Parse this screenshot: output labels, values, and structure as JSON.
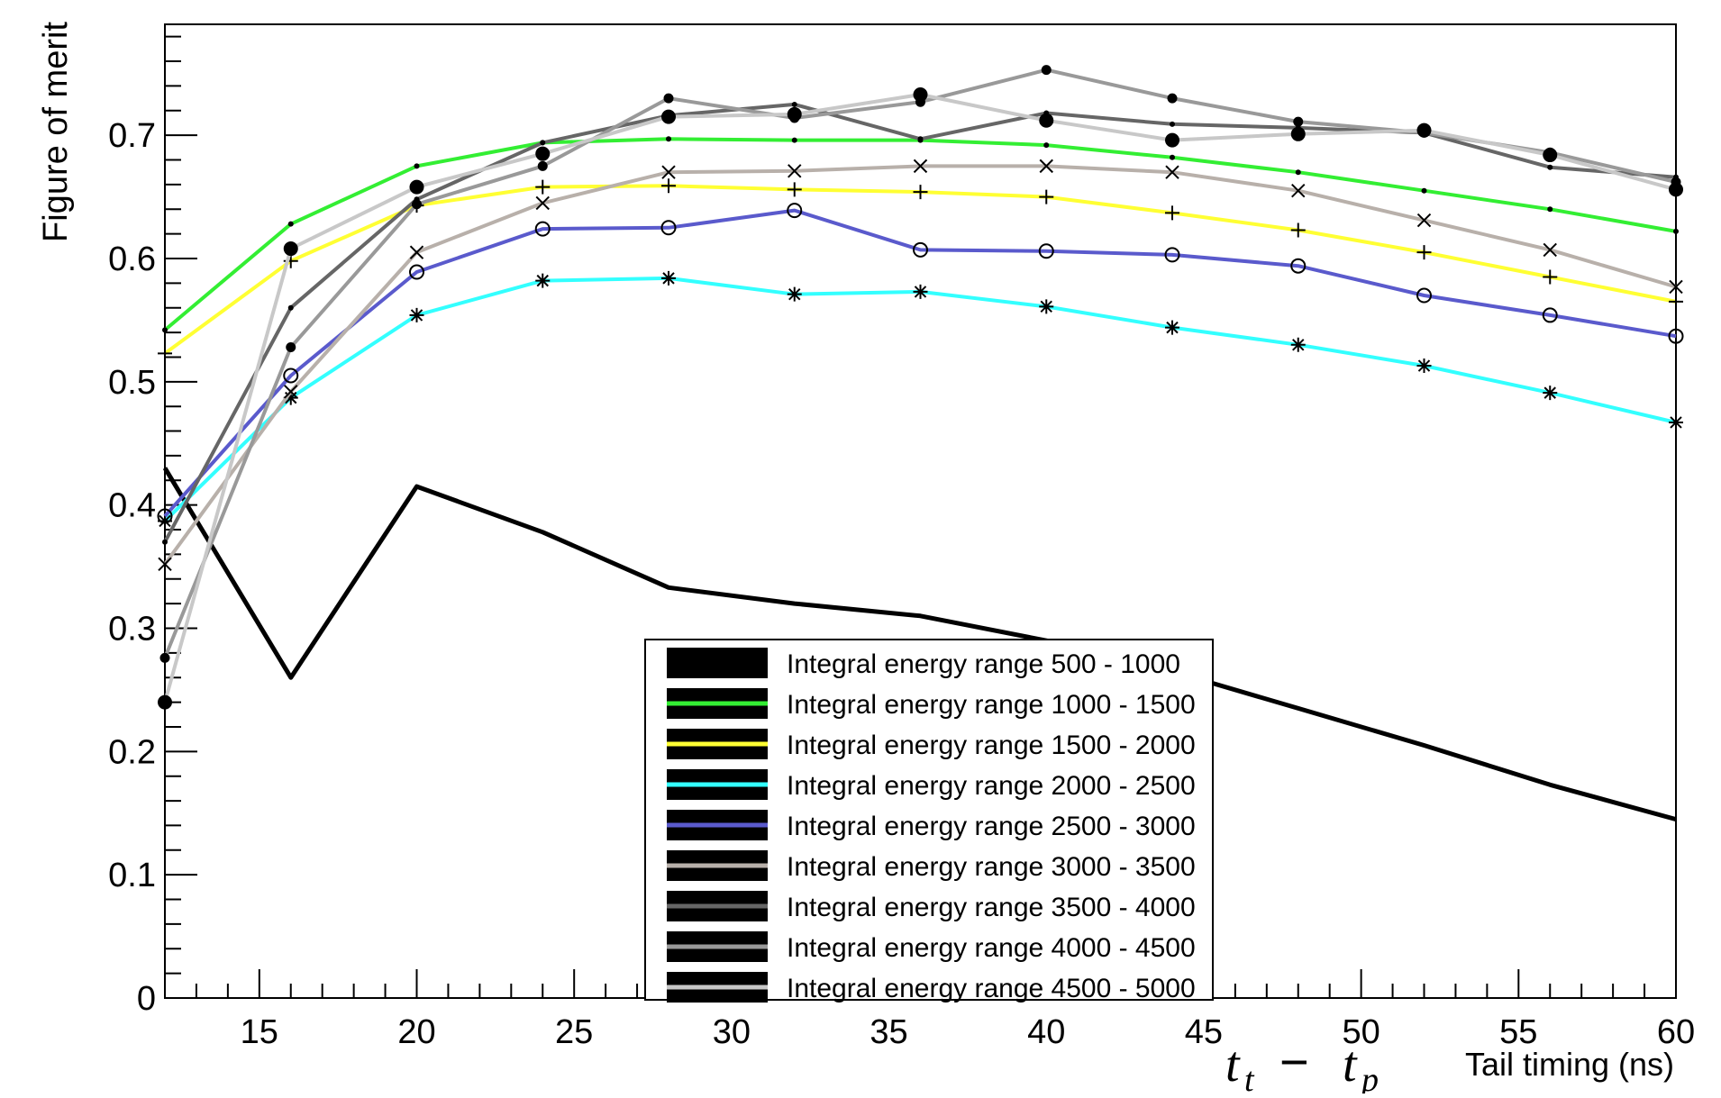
{
  "chart_data": {
    "type": "line",
    "ylabel": "Figure of merit",
    "xlabel_math": "t",
    "xlabel_sub_t": "t",
    "xlabel_sub_p": "p",
    "xlabel_minus": "−",
    "xlabel_text": "Tail timing (ns)",
    "xlim": [
      12,
      60
    ],
    "ylim": [
      0,
      0.79
    ],
    "xticks": [
      15,
      20,
      25,
      30,
      35,
      40,
      45,
      50,
      55,
      60
    ],
    "xtick_labels": [
      "15",
      "20",
      "25",
      "30",
      "35",
      "40",
      "45",
      "50",
      "55",
      "60"
    ],
    "yticks": [
      0,
      0.1,
      0.2,
      0.3,
      0.4,
      0.5,
      0.6,
      0.7
    ],
    "ytick_labels": [
      "0",
      "0.1",
      "0.2",
      "0.3",
      "0.4",
      "0.5",
      "0.6",
      "0.7"
    ],
    "grid": false,
    "legend_position": "bottom-center",
    "x": [
      12,
      16,
      20,
      24,
      28,
      32,
      36,
      40,
      44,
      48,
      52,
      56,
      60
    ],
    "series": [
      {
        "name": "Integral energy range 500 - 1000",
        "color": "#000000",
        "marker": "none",
        "values": [
          0.43,
          0.26,
          0.415,
          0.378,
          0.333,
          0.32,
          0.31,
          0.29,
          0.265,
          0.235,
          0.205,
          0.173,
          0.145
        ]
      },
      {
        "name": "Integral energy range 1000 - 1500",
        "color": "#33ee33",
        "marker": "dot",
        "values": [
          0.542,
          0.628,
          0.675,
          0.694,
          0.697,
          0.696,
          0.696,
          0.692,
          0.682,
          0.67,
          0.655,
          0.64,
          0.622
        ]
      },
      {
        "name": "Integral energy range 1500 - 2000",
        "color": "#ffff33",
        "marker": "plus",
        "values": [
          0.523,
          0.598,
          0.643,
          0.658,
          0.659,
          0.656,
          0.654,
          0.65,
          0.637,
          0.623,
          0.605,
          0.585,
          0.565
        ]
      },
      {
        "name": "Integral energy range 2000 - 2500",
        "color": "#33ffff",
        "marker": "star",
        "values": [
          0.387,
          0.487,
          0.554,
          0.582,
          0.584,
          0.571,
          0.573,
          0.561,
          0.544,
          0.53,
          0.513,
          0.491,
          0.467
        ]
      },
      {
        "name": "Integral energy range 2500 - 3000",
        "color": "#5a5acc",
        "marker": "circle",
        "values": [
          0.391,
          0.505,
          0.589,
          0.624,
          0.625,
          0.639,
          0.607,
          0.606,
          0.603,
          0.594,
          0.57,
          0.554,
          0.537
        ]
      },
      {
        "name": "Integral energy range 3000 - 3500",
        "color": "#b8b0aa",
        "marker": "cross",
        "values": [
          0.352,
          0.492,
          0.605,
          0.645,
          0.67,
          0.671,
          0.675,
          0.675,
          0.67,
          0.655,
          0.631,
          0.607,
          0.577
        ]
      },
      {
        "name": "Integral energy range 3500 - 4000",
        "color": "#666666",
        "marker": "dot",
        "values": [
          0.37,
          0.56,
          0.648,
          0.694,
          0.716,
          0.725,
          0.697,
          0.718,
          0.709,
          0.706,
          0.702,
          0.674,
          0.666
        ]
      },
      {
        "name": "Integral energy range 4000 - 4500",
        "color": "#999999",
        "marker": "smalldot",
        "values": [
          0.276,
          0.528,
          0.644,
          0.675,
          0.73,
          0.714,
          0.727,
          0.753,
          0.73,
          0.711,
          0.702,
          0.686,
          0.662
        ]
      },
      {
        "name": "Integral energy range 4500 - 5000",
        "color": "#c8c8c8",
        "marker": "bigdot",
        "values": [
          0.24,
          0.608,
          0.658,
          0.685,
          0.715,
          0.717,
          0.733,
          0.712,
          0.696,
          0.701,
          0.704,
          0.684,
          0.656
        ]
      }
    ]
  }
}
